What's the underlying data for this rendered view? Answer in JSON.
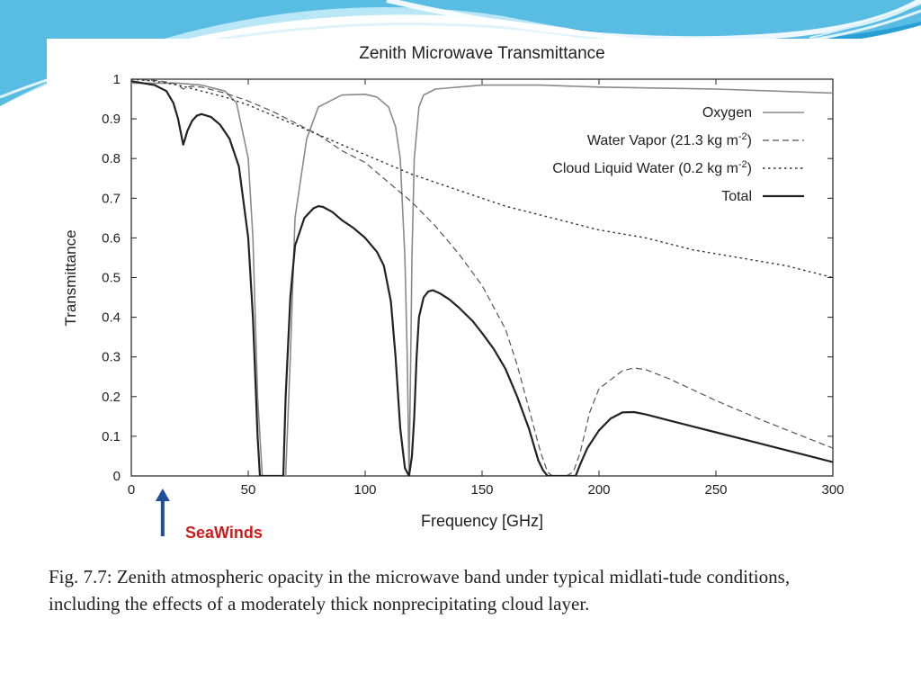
{
  "slide": {
    "accent_color": "#33a7d8",
    "annotation": {
      "label": "SeaWinds",
      "x_ghz": 13.4,
      "color": "#d11a1a",
      "arrow_color": "#1f4f9a"
    }
  },
  "caption": {
    "label": "Fig. 7.7:",
    "text": " Zenith atmospheric opacity in the microwave band under typical midlati-tude conditions, including the effects of a moderately thick nonprecipitating cloud layer."
  },
  "chart_data": {
    "type": "line",
    "title": "Zenith Microwave Transmittance",
    "xlabel": "Frequency [GHz]",
    "ylabel": "Transmittance",
    "xlim": [
      0,
      300
    ],
    "ylim": [
      0,
      1
    ],
    "xticks": [
      0,
      50,
      100,
      150,
      200,
      250,
      300
    ],
    "yticks": [
      0,
      0.1,
      0.2,
      0.3,
      0.4,
      0.5,
      0.6,
      0.7,
      0.8,
      0.9,
      1
    ],
    "grid": false,
    "legend": "top-right",
    "series": [
      {
        "name": "Oxygen",
        "style": "solid",
        "color": "#8a8a8a",
        "x": [
          0,
          10,
          20,
          30,
          40,
          45,
          50,
          52,
          54,
          56,
          58,
          60,
          62,
          64,
          66,
          68,
          70,
          75,
          80,
          90,
          100,
          105,
          110,
          113,
          115,
          117,
          118,
          118.75,
          119.5,
          120,
          121,
          123,
          125,
          130,
          140,
          150,
          175,
          200,
          250,
          300
        ],
        "y": [
          0.99,
          0.99,
          0.99,
          0.985,
          0.97,
          0.94,
          0.8,
          0.6,
          0.2,
          0,
          0,
          0,
          0,
          0,
          0,
          0.3,
          0.65,
          0.85,
          0.93,
          0.96,
          0.962,
          0.955,
          0.93,
          0.88,
          0.8,
          0.55,
          0.3,
          0,
          0.3,
          0.55,
          0.8,
          0.93,
          0.96,
          0.975,
          0.98,
          0.985,
          0.985,
          0.98,
          0.975,
          0.965
        ]
      },
      {
        "name": "Water Vapor (21.3 kg m-2)",
        "legend_label": {
          "main": "Water Vapor (21.3 kg m",
          "sup": "-2",
          "tail": ")"
        },
        "style": "dashed",
        "color": "#555555",
        "x": [
          0,
          10,
          18,
          20,
          22.2,
          24,
          26,
          30,
          40,
          50,
          60,
          70,
          80,
          90,
          100,
          110,
          120,
          130,
          140,
          150,
          160,
          165,
          170,
          175,
          178,
          180,
          183,
          186,
          189,
          192,
          196,
          200,
          210,
          215,
          220,
          230,
          250,
          270,
          300
        ],
        "y": [
          1,
          0.997,
          0.99,
          0.985,
          0.975,
          0.98,
          0.982,
          0.98,
          0.965,
          0.945,
          0.92,
          0.89,
          0.86,
          0.82,
          0.79,
          0.74,
          0.69,
          0.63,
          0.56,
          0.48,
          0.37,
          0.28,
          0.17,
          0.06,
          0.01,
          0,
          0,
          0,
          0.01,
          0.06,
          0.16,
          0.22,
          0.265,
          0.272,
          0.268,
          0.245,
          0.19,
          0.14,
          0.07
        ]
      },
      {
        "name": "Cloud Liquid Water (0.2 kg m-2)",
        "legend_label": {
          "main": "Cloud Liquid Water (0.2 kg m",
          "sup": "-2",
          "tail": ")"
        },
        "style": "dotted",
        "color": "#333333",
        "x": [
          0,
          10,
          20,
          30,
          40,
          50,
          60,
          70,
          80,
          90,
          100,
          120,
          140,
          160,
          180,
          200,
          220,
          240,
          260,
          280,
          300
        ],
        "y": [
          1,
          0.995,
          0.985,
          0.97,
          0.955,
          0.935,
          0.91,
          0.885,
          0.86,
          0.835,
          0.81,
          0.76,
          0.72,
          0.68,
          0.65,
          0.62,
          0.6,
          0.57,
          0.55,
          0.53,
          0.5
        ]
      },
      {
        "name": "Total",
        "style": "solid-thick",
        "color": "#222222",
        "x": [
          0,
          5,
          10,
          15,
          18,
          20,
          21,
          22.2,
          23,
          24,
          26,
          28,
          30,
          34,
          38,
          42,
          46,
          50,
          52,
          54,
          55,
          65,
          66,
          68,
          70,
          74,
          78,
          80,
          82,
          86,
          90,
          95,
          100,
          105,
          108,
          111,
          113,
          115,
          117,
          118.75,
          120,
          121,
          122,
          123,
          125,
          127,
          129,
          132,
          136,
          140,
          146,
          150,
          155,
          160,
          165,
          170,
          174,
          176,
          178,
          190,
          192,
          195,
          200,
          205,
          210,
          215,
          220,
          230,
          240,
          250,
          260,
          270,
          280,
          290,
          300
        ],
        "y": [
          0.995,
          0.99,
          0.985,
          0.97,
          0.94,
          0.9,
          0.87,
          0.835,
          0.85,
          0.87,
          0.895,
          0.908,
          0.912,
          0.905,
          0.885,
          0.85,
          0.78,
          0.6,
          0.4,
          0.1,
          0,
          0,
          0.2,
          0.45,
          0.58,
          0.65,
          0.675,
          0.68,
          0.678,
          0.665,
          0.645,
          0.625,
          0.6,
          0.565,
          0.53,
          0.44,
          0.3,
          0.12,
          0.02,
          0,
          0.05,
          0.15,
          0.3,
          0.4,
          0.45,
          0.465,
          0.468,
          0.46,
          0.445,
          0.425,
          0.39,
          0.36,
          0.32,
          0.27,
          0.2,
          0.12,
          0.04,
          0.015,
          0,
          0,
          0.03,
          0.07,
          0.115,
          0.145,
          0.16,
          0.161,
          0.155,
          0.14,
          0.125,
          0.11,
          0.095,
          0.08,
          0.065,
          0.05,
          0.035
        ]
      }
    ]
  }
}
